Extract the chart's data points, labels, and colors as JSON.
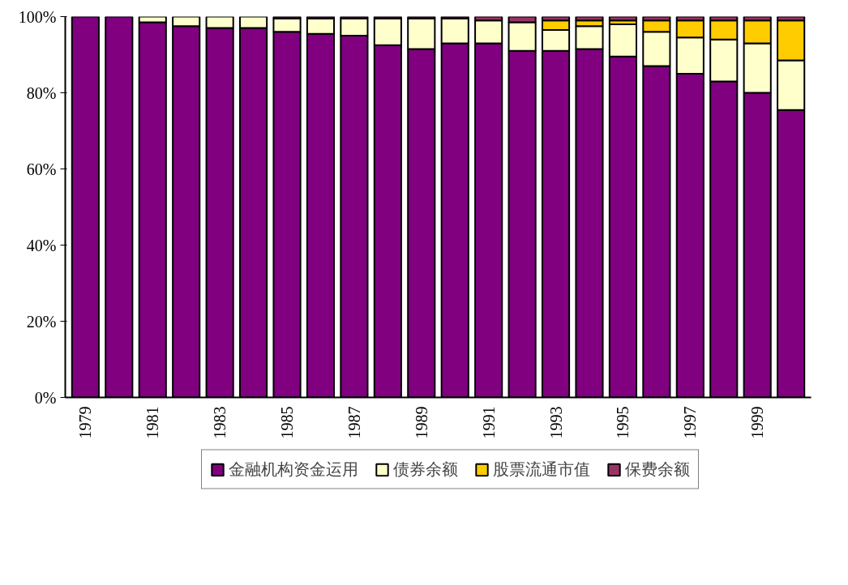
{
  "chart_data": {
    "type": "bar",
    "stacked": true,
    "categories": [
      "1979",
      null,
      "1981",
      null,
      "1983",
      null,
      "1985",
      null,
      "1987",
      null,
      "1989",
      null,
      "1991",
      null,
      "1993",
      null,
      "1995",
      null,
      "1997",
      null,
      "1999",
      null
    ],
    "series": [
      {
        "name": "金融机构资金运用",
        "color": "#800080",
        "values": [
          100,
          100,
          98.5,
          97.5,
          97,
          97,
          96,
          95.5,
          95,
          92.5,
          91.5,
          93,
          93,
          91,
          91,
          91.5,
          89.5,
          87,
          85,
          83,
          80,
          75.5
        ]
      },
      {
        "name": "债券余额",
        "color": "#ffffcc",
        "values": [
          null,
          null,
          1.5,
          2.5,
          3,
          3,
          3.5,
          4,
          4.5,
          7,
          8,
          6.5,
          6,
          7.5,
          5.5,
          6,
          8.5,
          9,
          9.5,
          11,
          13,
          13
        ]
      },
      {
        "name": "股票流通市值",
        "color": "#ffcc00",
        "values": [
          null,
          null,
          null,
          null,
          null,
          null,
          null,
          null,
          null,
          null,
          null,
          null,
          null,
          null,
          2.5,
          1.5,
          1,
          3,
          4.5,
          5,
          6,
          10.5
        ]
      },
      {
        "name": "保费余额",
        "color": "#993366",
        "values": [
          null,
          null,
          null,
          null,
          null,
          null,
          0.5,
          0.5,
          0.5,
          0.5,
          0.5,
          0.5,
          1,
          1.5,
          1,
          1,
          1,
          1,
          1,
          1,
          1,
          1
        ]
      }
    ],
    "ylim": [
      0,
      100
    ],
    "yticks": [
      {
        "value": 0,
        "label": "0%"
      },
      {
        "value": 20,
        "label": "20%"
      },
      {
        "value": 40,
        "label": "40%"
      },
      {
        "value": 60,
        "label": "60%"
      },
      {
        "value": 80,
        "label": "80%"
      },
      {
        "value": 100,
        "label": "100%"
      }
    ],
    "grid": false,
    "legend": "bottom"
  }
}
